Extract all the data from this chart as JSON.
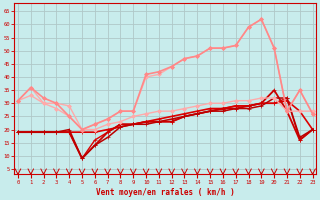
{
  "xlabel": "Vent moyen/en rafales ( km/h )",
  "bg_color": "#c8ecec",
  "grid_color": "#b0c8c8",
  "x": [
    0,
    1,
    2,
    3,
    4,
    5,
    6,
    7,
    8,
    9,
    10,
    11,
    12,
    13,
    14,
    15,
    16,
    17,
    18,
    19,
    20,
    21,
    22,
    23
  ],
  "lines": [
    {
      "y": [
        19,
        19,
        19,
        19,
        19,
        19,
        19,
        20,
        21,
        22,
        23,
        24,
        25,
        26,
        27,
        28,
        28,
        29,
        29,
        30,
        30,
        31,
        27,
        20
      ],
      "color": "#dd0000",
      "lw": 1.2,
      "marker": "+",
      "ms": 3.5
    },
    {
      "y": [
        19,
        19,
        19,
        19,
        19,
        9,
        16,
        19,
        22,
        22,
        23,
        23,
        23,
        25,
        26,
        27,
        28,
        29,
        29,
        30,
        30,
        32,
        16,
        20
      ],
      "color": "#dd0000",
      "lw": 1.0,
      "marker": "+",
      "ms": 3.0
    },
    {
      "y": [
        19,
        19,
        19,
        19,
        19,
        9,
        14,
        19,
        22,
        22,
        23,
        23,
        23,
        25,
        26,
        27,
        28,
        28,
        29,
        30,
        35,
        27,
        16,
        20
      ],
      "color": "#cc0000",
      "lw": 1.3,
      "marker": "+",
      "ms": 3.5
    },
    {
      "y": [
        19,
        19,
        19,
        19,
        20,
        9,
        14,
        17,
        21,
        22,
        22,
        23,
        24,
        25,
        26,
        27,
        27,
        28,
        28,
        29,
        32,
        32,
        17,
        20
      ],
      "color": "#bb0000",
      "lw": 1.1,
      "marker": "+",
      "ms": 3.0
    },
    {
      "y": [
        31,
        33,
        30,
        30,
        29,
        20,
        20,
        22,
        23,
        25,
        26,
        27,
        27,
        28,
        29,
        30,
        30,
        31,
        31,
        32,
        32,
        27,
        27,
        27
      ],
      "color": "#ffaaaa",
      "lw": 1.0,
      "marker": "D",
      "ms": 2.0
    },
    {
      "y": [
        31,
        36,
        30,
        28,
        25,
        20,
        22,
        24,
        27,
        27,
        40,
        41,
        44,
        47,
        48,
        51,
        51,
        52,
        59,
        62,
        51,
        27,
        35,
        26
      ],
      "color": "#ffaaaa",
      "lw": 1.0,
      "marker": "D",
      "ms": 2.0
    },
    {
      "y": [
        31,
        36,
        32,
        30,
        25,
        20,
        22,
        24,
        27,
        27,
        41,
        42,
        44,
        47,
        48,
        51,
        51,
        52,
        59,
        62,
        51,
        27,
        35,
        26
      ],
      "color": "#ff8888",
      "lw": 1.2,
      "marker": "D",
      "ms": 2.0
    }
  ],
  "yticks": [
    5,
    10,
    15,
    20,
    25,
    30,
    35,
    40,
    45,
    50,
    55,
    60,
    65
  ],
  "xticks": [
    0,
    1,
    2,
    3,
    4,
    5,
    6,
    7,
    8,
    9,
    10,
    11,
    12,
    13,
    14,
    15,
    16,
    17,
    18,
    19,
    20,
    21,
    22,
    23
  ],
  "ylim": [
    3,
    68
  ],
  "xlim": [
    -0.3,
    23.3
  ]
}
